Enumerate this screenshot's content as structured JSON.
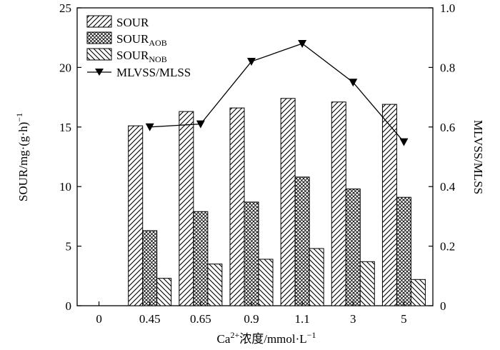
{
  "chart_data": {
    "type": "bar",
    "categories": [
      "0.45",
      "0.65",
      "0.9",
      "1.1",
      "3",
      "5"
    ],
    "x_zero_label": "0",
    "series": [
      {
        "name": "SOUR",
        "name_main": "SOUR",
        "name_sub": "",
        "values": [
          15.1,
          16.3,
          16.6,
          17.4,
          17.1,
          16.9
        ],
        "axis": "left",
        "pattern": "diag-up"
      },
      {
        "name": "SOURAOB",
        "name_main": "SOUR",
        "name_sub": "AOB",
        "values": [
          6.3,
          7.9,
          8.7,
          10.8,
          9.8,
          9.1
        ],
        "axis": "left",
        "pattern": "crosshatch"
      },
      {
        "name": "SOURNOB",
        "name_main": "SOUR",
        "name_sub": "NOB",
        "values": [
          2.3,
          3.5,
          3.9,
          4.8,
          3.7,
          2.2
        ],
        "axis": "left",
        "pattern": "diag-down"
      }
    ],
    "line_series": {
      "name": "MLVSS/MLSS",
      "values": [
        0.6,
        0.61,
        0.82,
        0.88,
        0.75,
        0.55
      ],
      "axis": "right"
    },
    "xlabel": {
      "main": "Ca",
      "sup": "2+",
      "rest": "浓度/mmol·L",
      "sup2": "−1"
    },
    "ylabel_left": {
      "main": "SOUR/mg·(g·h)",
      "sup": "−1"
    },
    "ylabel_right": "MLVSS/MLSS",
    "ylim_left": [
      0,
      25
    ],
    "yticks_left": [
      "0",
      "5",
      "10",
      "15",
      "20",
      "25"
    ],
    "ylim_right": [
      0,
      1.0
    ],
    "yticks_right": [
      "0",
      "0.2",
      "0.4",
      "0.6",
      "0.8",
      "1.0"
    ],
    "legend_position": "top-left",
    "grid": false,
    "colors": {
      "bars": "#000000",
      "line": "#000000",
      "background": "#ffffff"
    }
  }
}
